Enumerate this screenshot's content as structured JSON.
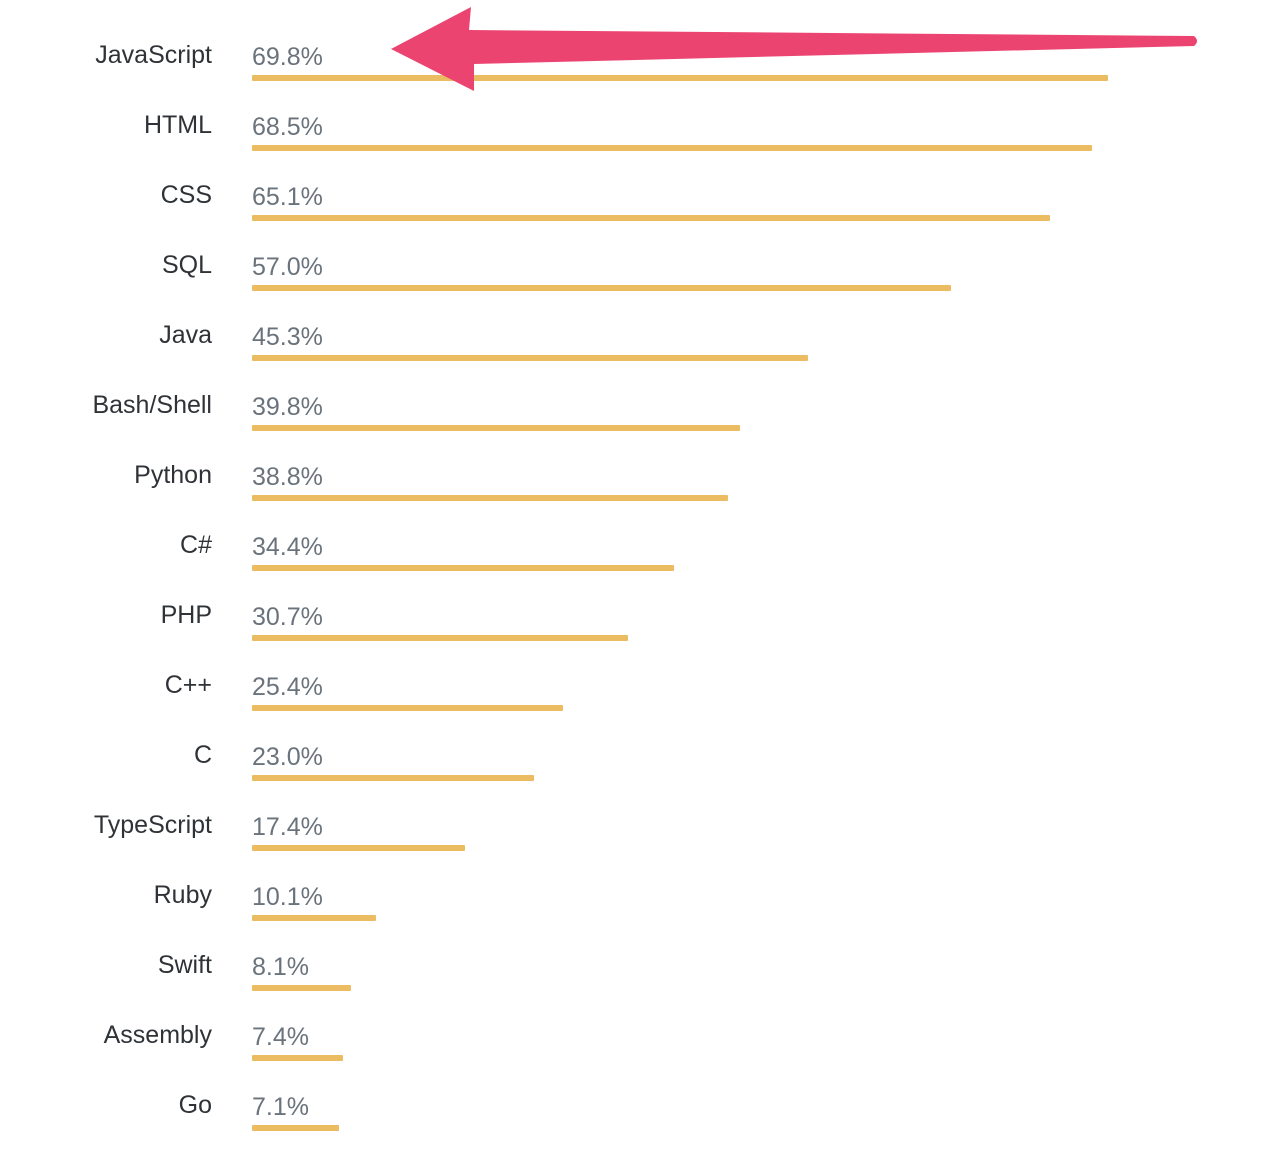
{
  "chart_data": {
    "type": "bar",
    "orientation": "horizontal",
    "categories": [
      "JavaScript",
      "HTML",
      "CSS",
      "SQL",
      "Java",
      "Bash/Shell",
      "Python",
      "C#",
      "PHP",
      "C++",
      "C",
      "TypeScript",
      "Ruby",
      "Swift",
      "Assembly",
      "Go"
    ],
    "values": [
      69.8,
      68.5,
      65.1,
      57.0,
      45.3,
      39.8,
      38.8,
      34.4,
      30.7,
      25.4,
      23.0,
      17.4,
      10.1,
      8.1,
      7.4,
      7.1
    ],
    "value_labels": [
      "69.8%",
      "68.5%",
      "65.1%",
      "57.0%",
      "45.3%",
      "39.8%",
      "38.8%",
      "34.4%",
      "30.7%",
      "25.4%",
      "23.0%",
      "17.4%",
      "10.1%",
      "8.1%",
      "7.4%",
      "7.1%"
    ],
    "value_unit": "%",
    "xlim": [
      0,
      69.8
    ],
    "grid": false,
    "legend": "none",
    "bar_color": "#ecbc62",
    "annotation": {
      "type": "arrow",
      "points_to": "JavaScript",
      "color": "#ec4471"
    }
  }
}
